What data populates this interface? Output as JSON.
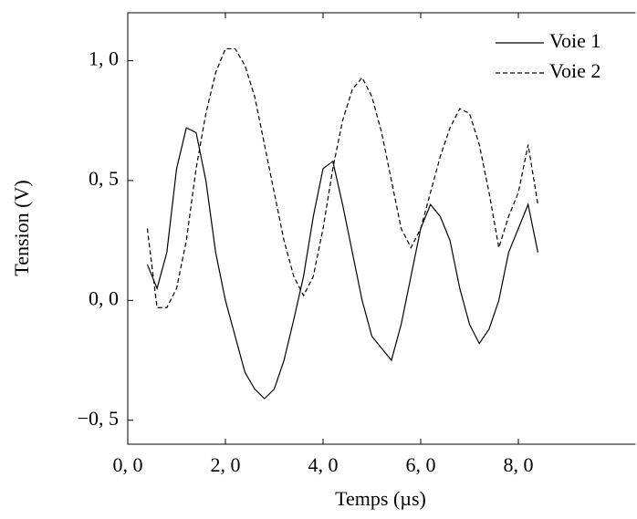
{
  "chart_data": {
    "type": "line",
    "xlabel": "Temps (µs)",
    "ylabel": "Tension (V)",
    "x": [
      0.4,
      0.6,
      0.8,
      1.0,
      1.2,
      1.4,
      1.6,
      1.8,
      2.0,
      2.2,
      2.4,
      2.6,
      2.8,
      3.0,
      3.2,
      3.4,
      3.6,
      3.8,
      4.0,
      4.2,
      4.4,
      4.6,
      4.8,
      5.0,
      5.2,
      5.4,
      5.6,
      5.8,
      6.0,
      6.2,
      6.4,
      6.6,
      6.8,
      7.0,
      7.2,
      7.4,
      7.6,
      7.8,
      8.0,
      8.2,
      8.4
    ],
    "series": [
      {
        "name": "Voie 1",
        "color": "#000000",
        "dash": "solid",
        "values": [
          0.15,
          0.05,
          0.2,
          0.55,
          0.72,
          0.7,
          0.5,
          0.2,
          0.0,
          -0.15,
          -0.3,
          -0.37,
          -0.41,
          -0.37,
          -0.25,
          -0.08,
          0.1,
          0.35,
          0.55,
          0.58,
          0.4,
          0.2,
          0.0,
          -0.15,
          -0.2,
          -0.25,
          -0.1,
          0.1,
          0.3,
          0.4,
          0.35,
          0.25,
          0.05,
          -0.1,
          -0.18,
          -0.12,
          0.0,
          0.2,
          0.3,
          0.4,
          0.2
        ]
      },
      {
        "name": "Voie 2",
        "color": "#000000",
        "dash": "dashed",
        "values": [
          0.3,
          -0.03,
          -0.03,
          0.05,
          0.25,
          0.55,
          0.78,
          0.95,
          1.05,
          1.05,
          0.98,
          0.85,
          0.65,
          0.45,
          0.25,
          0.1,
          0.02,
          0.1,
          0.3,
          0.55,
          0.75,
          0.88,
          0.93,
          0.85,
          0.7,
          0.5,
          0.3,
          0.22,
          0.3,
          0.45,
          0.6,
          0.72,
          0.8,
          0.78,
          0.65,
          0.45,
          0.22,
          0.35,
          0.45,
          0.65,
          0.4
        ]
      }
    ],
    "xlim": [
      0,
      10.4
    ],
    "ylim": [
      -0.6,
      1.2
    ],
    "xticks": [
      {
        "value": 0,
        "label": "0, 0"
      },
      {
        "value": 2,
        "label": "2, 0"
      },
      {
        "value": 4,
        "label": "4, 0"
      },
      {
        "value": 6,
        "label": "6, 0"
      },
      {
        "value": 8,
        "label": "8, 0"
      }
    ],
    "yticks": [
      {
        "value": -0.5,
        "label": "−0, 5"
      },
      {
        "value": 0,
        "label": "0, 0"
      },
      {
        "value": 0.5,
        "label": "0, 5"
      },
      {
        "value": 1,
        "label": "1, 0"
      }
    ],
    "legend": "top-right",
    "grid": false
  }
}
